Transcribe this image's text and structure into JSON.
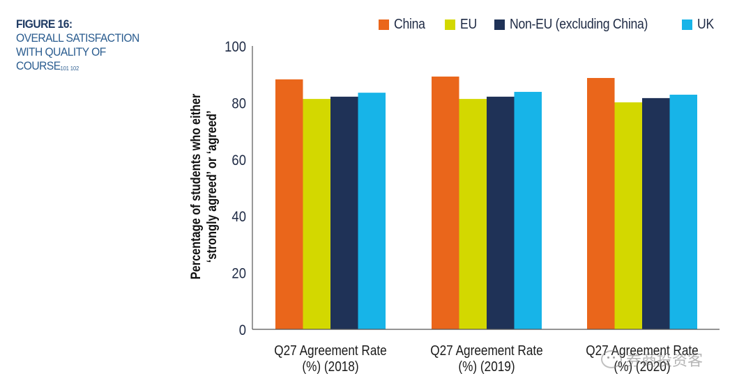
{
  "figure": {
    "number_label": "FIGURE 16:",
    "title_lines": [
      "OVERALL SATISFACTION",
      "WITH QUALITY OF",
      "COURSE"
    ],
    "footnote_refs": "101 102"
  },
  "colors": {
    "China": "#ea661b",
    "EU": "#d3d800",
    "Non-EU (excluding China)": "#1f3257",
    "UK": "#17b4e8",
    "axis": "#555555",
    "text": "#1e2a44",
    "title_accent": "#2a5c8f"
  },
  "chart_data": {
    "type": "bar",
    "title": "OVERALL SATISFACTION WITH QUALITY OF COURSE",
    "xlabel": "",
    "ylabel": "Percentage of students who either 'strongly agreed' or 'agreed'",
    "ylabel_lines": [
      "Percentage of students who either",
      "‘strongly agreed’ or ‘agreed’"
    ],
    "categories": [
      "Q27 Agreement Rate (%) (2018)",
      "Q27 Agreement Rate (%) (2019)",
      "Q27 Agreement Rate (%) (2020)"
    ],
    "category_lines": [
      [
        "Q27 Agreement Rate",
        "(%) (2018)"
      ],
      [
        "Q27 Agreement Rate",
        "(%) (2019)"
      ],
      [
        "Q27 Agreement Rate",
        "(%) (2020)"
      ]
    ],
    "series": [
      {
        "name": "China",
        "values": [
          88.2,
          89.2,
          88.7
        ]
      },
      {
        "name": "EU",
        "values": [
          81.3,
          81.3,
          80.1
        ]
      },
      {
        "name": "Non-EU (excluding China)",
        "values": [
          82.1,
          82.1,
          81.6
        ]
      },
      {
        "name": "UK",
        "values": [
          83.5,
          83.8,
          82.8
        ]
      }
    ],
    "ylim": [
      0,
      100
    ],
    "yticks": [
      0,
      20,
      40,
      60,
      80,
      100
    ],
    "grid": false,
    "legend_position": "top"
  },
  "watermark": {
    "text": "券商投资客"
  }
}
